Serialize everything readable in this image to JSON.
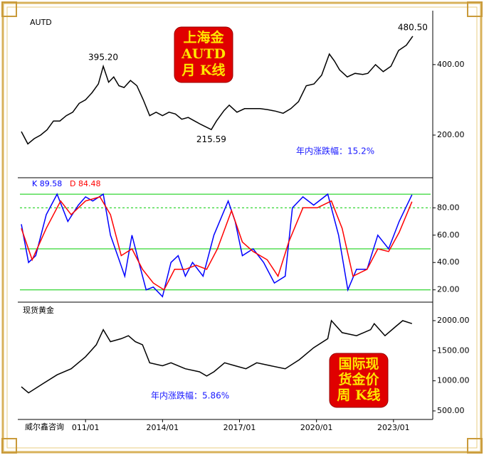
{
  "chart_data": [
    {
      "type": "line",
      "title": "AUTD",
      "badge": [
        "上海金",
        "AUTD",
        "月  K线"
      ],
      "note": "年内涨跌幅：15.2%",
      "xlim": [
        2008.36,
        2024.53
      ],
      "ylim": [
        79,
        553
      ],
      "yticks": [
        {
          "value": 400,
          "label": "400.00"
        },
        {
          "value": 200,
          "label": "200.00"
        }
      ],
      "series": [
        {
          "name": "AUTD",
          "color": "#000000",
          "x": [
            2008.5,
            2008.75,
            2009.0,
            2009.25,
            2009.5,
            2009.75,
            2010.0,
            2010.25,
            2010.5,
            2010.75,
            2011.0,
            2011.25,
            2011.5,
            2011.69,
            2011.9,
            2012.1,
            2012.3,
            2012.5,
            2012.75,
            2013.0,
            2013.25,
            2013.5,
            2013.75,
            2014.0,
            2014.25,
            2014.5,
            2014.75,
            2015.0,
            2015.25,
            2015.5,
            2015.9,
            2016.1,
            2016.4,
            2016.6,
            2016.9,
            2017.2,
            2017.5,
            2017.8,
            2018.1,
            2018.4,
            2018.7,
            2019.0,
            2019.3,
            2019.6,
            2019.9,
            2020.2,
            2020.5,
            2020.7,
            2020.9,
            2021.2,
            2021.5,
            2021.8,
            2022.0,
            2022.3,
            2022.6,
            2022.9,
            2023.2,
            2023.5,
            2023.75
          ],
          "values": [
            210,
            175,
            190,
            200,
            215,
            240,
            240,
            255,
            265,
            290,
            300,
            320,
            345,
            395.2,
            350,
            365,
            340,
            335,
            355,
            340,
            300,
            255,
            265,
            255,
            265,
            260,
            245,
            250,
            240,
            230,
            215.59,
            240,
            270,
            285,
            265,
            275,
            275,
            275,
            272,
            268,
            262,
            275,
            295,
            340,
            345,
            370,
            430,
            410,
            385,
            365,
            375,
            372,
            375,
            400,
            380,
            395,
            440,
            455,
            480.5
          ]
        }
      ],
      "annotations": [
        {
          "label": "395.20",
          "x": 2011.69,
          "y": 395.2,
          "position": "above"
        },
        {
          "label": "215.59",
          "x": 2015.9,
          "y": 215.59,
          "position": "below"
        },
        {
          "label": "480.50",
          "x": 2023.75,
          "y": 480.5,
          "position": "above"
        }
      ]
    },
    {
      "type": "line",
      "xlim": [
        2008.36,
        2024.53
      ],
      "ylim": [
        11,
        102
      ],
      "yticks": [
        {
          "value": 80,
          "label": "80.00"
        },
        {
          "value": 60,
          "label": "60.00"
        },
        {
          "value": 40,
          "label": "40.00"
        },
        {
          "value": 20,
          "label": "20.00"
        }
      ],
      "hlines": [
        {
          "value": 90,
          "style": "solid",
          "color": "#00cc00"
        },
        {
          "value": 80,
          "style": "dashed",
          "color": "#00cc00"
        },
        {
          "value": 50,
          "style": "solid",
          "color": "#00cc00"
        },
        {
          "value": 20,
          "style": "solid",
          "color": "#00cc00"
        }
      ],
      "series": [
        {
          "name": "K 89.58",
          "color": "#0000ff",
          "x": [
            2008.5,
            2008.78,
            2009.06,
            2009.47,
            2009.89,
            2010.31,
            2010.72,
            2011.0,
            2011.28,
            2011.69,
            2011.97,
            2012.25,
            2012.53,
            2012.81,
            2013.08,
            2013.36,
            2013.64,
            2014.0,
            2014.33,
            2014.61,
            2014.89,
            2015.17,
            2015.58,
            2016.0,
            2016.56,
            2016.83,
            2017.11,
            2017.53,
            2017.94,
            2018.36,
            2018.78,
            2019.06,
            2019.47,
            2019.89,
            2020.44,
            2020.86,
            2021.22,
            2021.56,
            2021.97,
            2022.39,
            2022.81,
            2023.22,
            2023.72
          ],
          "values": [
            68,
            40,
            45,
            75,
            90,
            70,
            82,
            88,
            85,
            90,
            60,
            45,
            30,
            60,
            40,
            20,
            22,
            15,
            40,
            45,
            30,
            40,
            30,
            60,
            85,
            70,
            45,
            50,
            40,
            25,
            30,
            80,
            88,
            82,
            90,
            60,
            20,
            35,
            35,
            60,
            50,
            70,
            89.58
          ]
        },
        {
          "name": "D 84.48",
          "color": "#ff0000",
          "x": [
            2008.5,
            2008.92,
            2009.47,
            2010.03,
            2010.44,
            2011.0,
            2011.56,
            2011.97,
            2012.39,
            2012.81,
            2013.22,
            2013.64,
            2014.06,
            2014.47,
            2014.89,
            2015.31,
            2015.72,
            2016.14,
            2016.69,
            2017.11,
            2017.53,
            2018.08,
            2018.5,
            2018.92,
            2019.47,
            2020.03,
            2020.58,
            2021.0,
            2021.42,
            2021.97,
            2022.39,
            2022.81,
            2023.22,
            2023.72
          ],
          "values": [
            65,
            42,
            65,
            85,
            75,
            85,
            88,
            75,
            45,
            50,
            35,
            25,
            20,
            35,
            35,
            38,
            35,
            50,
            78,
            55,
            48,
            42,
            30,
            55,
            80,
            80,
            85,
            65,
            30,
            35,
            50,
            48,
            62,
            84.48
          ]
        }
      ]
    },
    {
      "type": "line",
      "title": "现货黄金",
      "badge": [
        "国际现",
        "货金价",
        "周  K线"
      ],
      "note": "年内涨跌幅：5.86%",
      "watermark": "威尔鑫咨询",
      "xlim": [
        2008.36,
        2024.53
      ],
      "ylim": [
        358,
        2307
      ],
      "xticks": [
        {
          "value": 2011,
          "label": "011/01"
        },
        {
          "value": 2014,
          "label": "2014/01"
        },
        {
          "value": 2017,
          "label": "2017/01"
        },
        {
          "value": 2020,
          "label": "2020/01"
        },
        {
          "value": 2023,
          "label": "2023/01"
        }
      ],
      "yticks": [
        {
          "value": 2000,
          "label": "2000.00"
        },
        {
          "value": 1500,
          "label": "1500.00"
        },
        {
          "value": 1000,
          "label": "1000.00"
        },
        {
          "value": 500,
          "label": "500.00"
        }
      ],
      "series": [
        {
          "name": "现货黄金",
          "color": "#000000",
          "x": [
            2008.5,
            2008.78,
            2009.33,
            2009.89,
            2010.44,
            2011.0,
            2011.42,
            2011.69,
            2011.97,
            2012.39,
            2012.67,
            2012.94,
            2013.22,
            2013.5,
            2014.0,
            2014.33,
            2014.89,
            2015.44,
            2015.72,
            2016.0,
            2016.42,
            2016.83,
            2017.25,
            2017.67,
            2018.22,
            2018.78,
            2019.33,
            2019.89,
            2020.44,
            2020.58,
            2021.0,
            2021.56,
            2022.11,
            2022.25,
            2022.67,
            2023.08,
            2023.36,
            2023.72
          ],
          "values": [
            900,
            800,
            950,
            1100,
            1200,
            1400,
            1600,
            1850,
            1650,
            1700,
            1750,
            1650,
            1600,
            1300,
            1250,
            1300,
            1200,
            1150,
            1080,
            1150,
            1300,
            1250,
            1200,
            1300,
            1250,
            1200,
            1350,
            1550,
            1700,
            2000,
            1800,
            1750,
            1850,
            1950,
            1750,
            1900,
            2000,
            1950
          ]
        }
      ]
    }
  ]
}
